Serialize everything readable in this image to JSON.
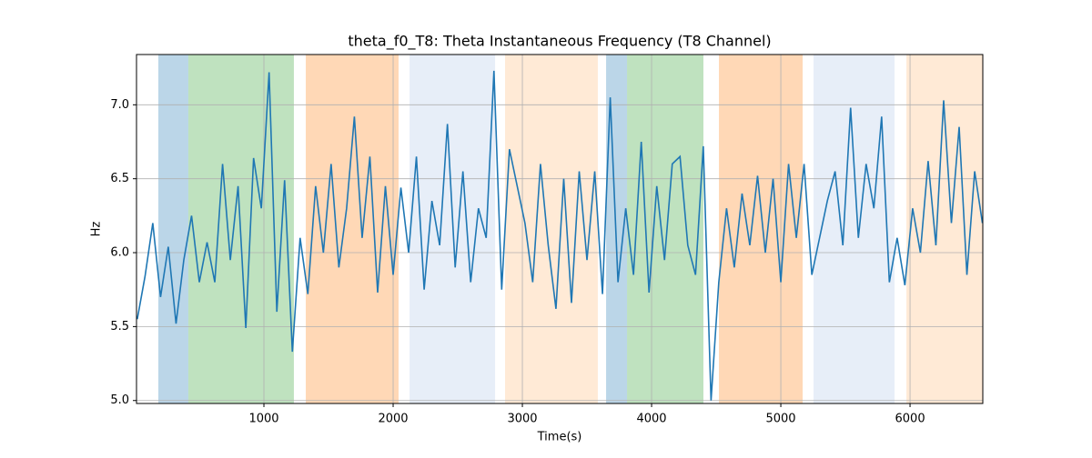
{
  "chart_data": {
    "type": "line",
    "title": "theta_f0_T8: Theta Instantaneous Frequency (T8 Channel)",
    "xlabel": "Time(s)",
    "ylabel": "Hz",
    "xlim": [
      14,
      6563
    ],
    "ylim": [
      4.98,
      7.34
    ],
    "xticks": [
      1000,
      2000,
      3000,
      4000,
      5000,
      6000
    ],
    "yticks": [
      {
        "value": 5,
        "label": "5.0"
      },
      {
        "value": 5.5,
        "label": "5.5"
      },
      {
        "value": 6,
        "label": "6.0"
      },
      {
        "value": 6.5,
        "label": "6.5"
      },
      {
        "value": 7,
        "label": "7.0"
      }
    ],
    "grid": true,
    "spans": [
      {
        "start": 183,
        "end": 415,
        "color": "#1f77b4"
      },
      {
        "start": 415,
        "end": 1232,
        "color": "#2ca02c"
      },
      {
        "start": 1324,
        "end": 2042,
        "color": "#ff7f0e"
      },
      {
        "start": 2127,
        "end": 2789,
        "color": "#aec7e8"
      },
      {
        "start": 2866,
        "end": 3584,
        "color": "#ffbb78"
      },
      {
        "start": 3648,
        "end": 3810,
        "color": "#1f77b4"
      },
      {
        "start": 3810,
        "end": 4401,
        "color": "#2ca02c"
      },
      {
        "start": 4521,
        "end": 5169,
        "color": "#ff7f0e"
      },
      {
        "start": 5253,
        "end": 5880,
        "color": "#aec7e8"
      },
      {
        "start": 5972,
        "end": 6563,
        "color": "#ffbb78"
      }
    ],
    "x": [
      20,
      80,
      140,
      200,
      260,
      320,
      380,
      440,
      500,
      560,
      620,
      680,
      740,
      800,
      860,
      920,
      980,
      1040,
      1100,
      1160,
      1220,
      1280,
      1340,
      1400,
      1460,
      1520,
      1580,
      1640,
      1700,
      1760,
      1820,
      1880,
      1940,
      2000,
      2060,
      2120,
      2180,
      2240,
      2300,
      2360,
      2420,
      2480,
      2540,
      2600,
      2660,
      2720,
      2780,
      2840,
      2900,
      2960,
      3020,
      3080,
      3140,
      3200,
      3260,
      3320,
      3380,
      3440,
      3500,
      3560,
      3620,
      3680,
      3740,
      3800,
      3860,
      3920,
      3980,
      4040,
      4100,
      4160,
      4220,
      4280,
      4340,
      4400,
      4460,
      4520,
      4580,
      4640,
      4700,
      4760,
      4820,
      4880,
      4940,
      5000,
      5060,
      5120,
      5180,
      5240,
      5300,
      5360,
      5420,
      5480,
      5540,
      5600,
      5660,
      5720,
      5780,
      5840,
      5900,
      5960,
      6020,
      6080,
      6140,
      6200,
      6260,
      6320,
      6380,
      6440,
      6500,
      6560
    ],
    "series": [
      {
        "color": "#1f77b4",
        "values": [
          5.55,
          5.84,
          6.2,
          5.7,
          6.04,
          5.52,
          5.95,
          6.25,
          5.8,
          6.07,
          5.8,
          6.6,
          5.95,
          6.45,
          5.49,
          6.64,
          6.3,
          7.22,
          5.6,
          6.49,
          5.33,
          6.1,
          5.72,
          6.45,
          6.0,
          6.6,
          5.9,
          6.3,
          6.92,
          6.1,
          6.65,
          5.73,
          6.45,
          5.85,
          6.44,
          6.0,
          6.65,
          5.75,
          6.35,
          6.05,
          6.87,
          5.9,
          6.55,
          5.8,
          6.3,
          6.1,
          7.23,
          5.75,
          6.7,
          6.45,
          6.2,
          5.8,
          6.6,
          6.05,
          5.62,
          6.5,
          5.66,
          6.55,
          5.95,
          6.55,
          5.72,
          7.05,
          5.8,
          6.3,
          5.85,
          6.75,
          5.73,
          6.45,
          5.95,
          6.6,
          6.65,
          6.05,
          5.85,
          6.72,
          5.0,
          5.8,
          6.3,
          5.9,
          6.4,
          6.05,
          6.52,
          6.0,
          6.5,
          5.8,
          6.6,
          6.1,
          6.6,
          5.85,
          6.1,
          6.35,
          6.55,
          6.05,
          6.98,
          6.1,
          6.6,
          6.3,
          6.92,
          5.8,
          6.1,
          5.78,
          6.3,
          6.0,
          6.62,
          6.05,
          7.03,
          6.2,
          6.85,
          5.85,
          6.55,
          6.2
        ]
      }
    ]
  }
}
